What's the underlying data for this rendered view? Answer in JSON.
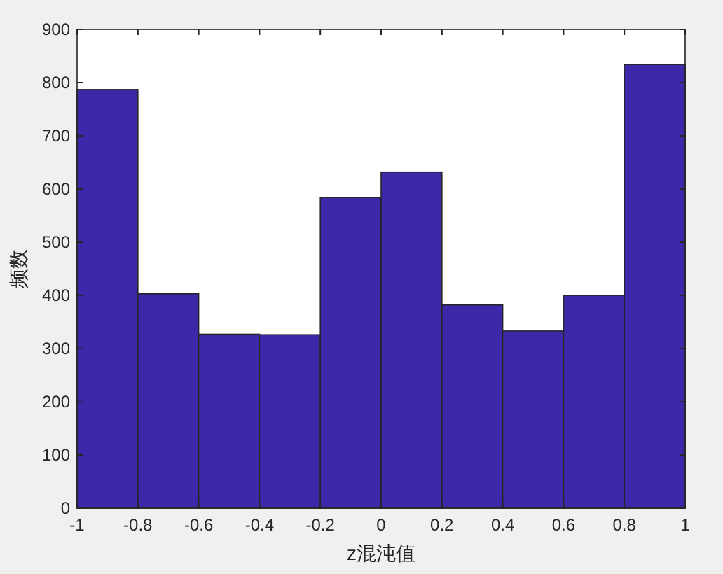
{
  "chart_data": {
    "type": "histogram",
    "xlabel": "z混沌值",
    "ylabel": "频数",
    "bins": [
      -1,
      -0.8,
      -0.6,
      -0.4,
      -0.2,
      0,
      0.2,
      0.4,
      0.6,
      0.8,
      1
    ],
    "values": [
      787,
      403,
      327,
      326,
      584,
      632,
      382,
      333,
      400,
      834
    ],
    "color": "#3c28a8",
    "xlim": [
      -1,
      1
    ],
    "xticks": [
      -1,
      -0.8,
      -0.6,
      -0.4,
      -0.2,
      0,
      0.2,
      0.4,
      0.6,
      0.8,
      1
    ],
    "ylim": [
      0,
      900
    ],
    "yticks": [
      0,
      100,
      200,
      300,
      400,
      500,
      600,
      700,
      800,
      900
    ]
  }
}
